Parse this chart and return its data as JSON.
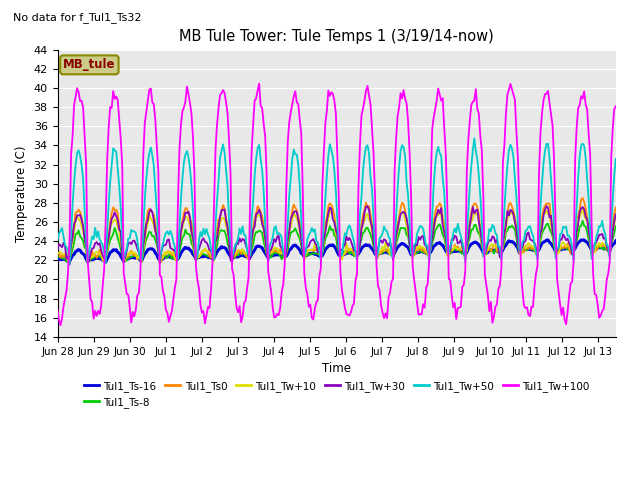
{
  "title": "MB Tule Tower: Tule Temps 1 (3/19/14-now)",
  "top_left_note": "No data for f_Tul1_Ts32",
  "xlabel": "Time",
  "ylabel": "Temperature (C)",
  "ylim": [
    14,
    44
  ],
  "yticks": [
    14,
    16,
    18,
    20,
    22,
    24,
    26,
    28,
    30,
    32,
    34,
    36,
    38,
    40,
    42,
    44
  ],
  "x_labels": [
    "Jun 28",
    "Jun 29",
    "Jun 30",
    "Jul 1",
    "Jul 2",
    "Jul 3",
    "Jul 4",
    "Jul 5",
    "Jul 6",
    "Jul 7",
    "Jul 8",
    "Jul 9",
    "Jul 10",
    "Jul 11",
    "Jul 12",
    "Jul 13"
  ],
  "series_order": [
    "Tul1_Ts-16",
    "Tul1_Ts-8",
    "Tul1_Ts0",
    "Tul1_Tw+10",
    "Tul1_Tw+30",
    "Tul1_Tw+50",
    "Tul1_Tw+100"
  ],
  "series": {
    "Tul1_Ts-16": {
      "color": "#0000DD",
      "lw": 2.2
    },
    "Tul1_Ts-8": {
      "color": "#00CC00",
      "lw": 1.3
    },
    "Tul1_Ts0": {
      "color": "#FF8800",
      "lw": 1.3
    },
    "Tul1_Tw+10": {
      "color": "#DDDD00",
      "lw": 1.3
    },
    "Tul1_Tw+30": {
      "color": "#8800BB",
      "lw": 1.3
    },
    "Tul1_Tw+50": {
      "color": "#00CCCC",
      "lw": 1.3
    },
    "Tul1_Tw+100": {
      "color": "#FF00FF",
      "lw": 1.3
    }
  },
  "legend_label": "MB_tule",
  "legend_box_facecolor": "#CCCC88",
  "legend_box_edgecolor": "#888800",
  "legend_text_color": "#880000",
  "background_color": "#E8E8E8",
  "grid_color": "#FFFFFF",
  "fig_width": 6.4,
  "fig_height": 4.8,
  "dpi": 100
}
